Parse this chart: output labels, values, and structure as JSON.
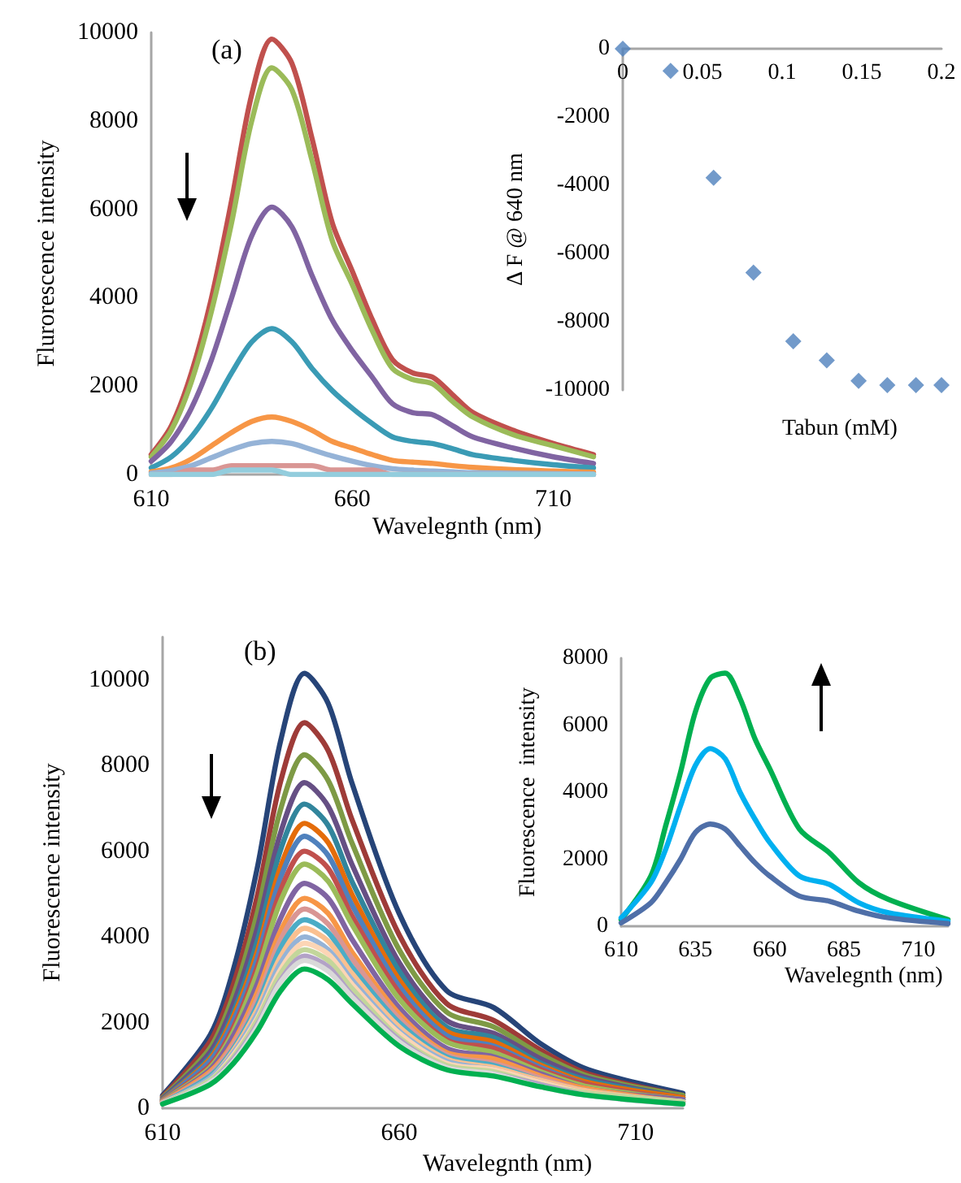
{
  "chart_data": [
    {
      "type": "line",
      "xlabel": "Wavelegnth (nm)",
      "ylabel": "Flurorescence intensity",
      "annotations": [
        "(a)"
      ],
      "marker": "none",
      "line_style": "solid",
      "xlim": [
        610,
        720
      ],
      "xticks": [
        610,
        660,
        710
      ],
      "ylim": [
        0,
        10000
      ],
      "yticks": [
        0,
        2000,
        4000,
        6000,
        8000,
        10000
      ],
      "x": [
        610,
        615,
        620,
        625,
        630,
        635,
        640,
        645,
        650,
        655,
        660,
        665,
        670,
        675,
        680,
        685,
        690,
        700,
        710,
        720
      ],
      "series": [
        {
          "color": "#c0504d",
          "values": [
            450,
            1100,
            2300,
            4000,
            6200,
            8600,
            9850,
            9300,
            7600,
            5700,
            4600,
            3500,
            2600,
            2300,
            2200,
            1800,
            1400,
            1000,
            700,
            450
          ]
        },
        {
          "color": "#9bbb59",
          "values": [
            400,
            1000,
            2100,
            3700,
            5700,
            8000,
            9200,
            8700,
            7100,
            5300,
            4300,
            3250,
            2400,
            2150,
            2050,
            1650,
            1300,
            900,
            650,
            400
          ]
        },
        {
          "color": "#8064a2",
          "values": [
            300,
            750,
            1500,
            2600,
            4000,
            5400,
            6050,
            5600,
            4500,
            3500,
            2800,
            2200,
            1600,
            1400,
            1350,
            1100,
            850,
            600,
            400,
            250
          ]
        },
        {
          "color": "#3a9bb5",
          "values": [
            150,
            400,
            850,
            1500,
            2300,
            3000,
            3300,
            3000,
            2400,
            1900,
            1500,
            1150,
            850,
            750,
            700,
            580,
            450,
            320,
            220,
            150
          ]
        },
        {
          "color": "#f79646",
          "values": [
            60,
            150,
            350,
            650,
            950,
            1200,
            1300,
            1200,
            1000,
            750,
            600,
            450,
            320,
            280,
            250,
            200,
            160,
            110,
            80,
            50
          ]
        },
        {
          "color": "#95b3d7",
          "values": [
            30,
            90,
            200,
            380,
            560,
            700,
            750,
            700,
            560,
            420,
            300,
            200,
            130,
            100,
            80,
            60,
            40,
            30,
            20,
            10
          ]
        },
        {
          "color": "#d99694",
          "values": [
            0,
            0,
            100,
            100,
            200,
            200,
            200,
            200,
            200,
            100,
            100,
            100,
            0,
            0,
            0,
            0,
            0,
            0,
            0,
            0
          ]
        },
        {
          "color": "#93cddd",
          "values": [
            0,
            0,
            0,
            0,
            100,
            100,
            100,
            0,
            0,
            0,
            0,
            0,
            0,
            0,
            0,
            0,
            0,
            0,
            0,
            0
          ]
        }
      ]
    },
    {
      "type": "scatter",
      "xlabel": "Tabun (mM)",
      "ylabel": "Δ F @ 640 nm",
      "marker": "diamond",
      "color": "#4f81bd",
      "xlim": [
        0,
        0.2
      ],
      "xticks": [
        0,
        0.05,
        0.1,
        0.15,
        0.2
      ],
      "ylim": [
        -10000,
        0
      ],
      "yticks": [
        -10000,
        -8000,
        -6000,
        -4000,
        -2000,
        0
      ],
      "x": [
        0,
        0.03,
        0.057,
        0.082,
        0.107,
        0.128,
        0.148,
        0.166,
        0.184,
        0.2
      ],
      "values": [
        0,
        -650,
        -3780,
        -6560,
        -8570,
        -9130,
        -9730,
        -9860,
        -9860,
        -9860
      ]
    },
    {
      "type": "line",
      "xlabel": "Wavelegnth (nm)",
      "ylabel": "Fluorescence intensity",
      "annotations": [
        "(b)"
      ],
      "marker": "none",
      "line_style": "solid",
      "xlim": [
        610,
        720
      ],
      "xticks": [
        610,
        660,
        710
      ],
      "ylim": [
        0,
        11000
      ],
      "yticks": [
        0,
        2000,
        4000,
        6000,
        8000,
        10000
      ],
      "x": [
        610,
        620,
        625,
        630,
        635,
        640,
        645,
        650,
        660,
        670,
        680,
        690,
        700,
        720
      ],
      "series": [
        {
          "color": "#264478",
          "values": [
            300,
            1700,
            3250,
            5600,
            8600,
            10150,
            9450,
            7600,
            4550,
            2750,
            2350,
            1500,
            900,
            350
          ]
        },
        {
          "color": "#9e3b38",
          "values": [
            270,
            1550,
            2900,
            4950,
            7650,
            9000,
            8350,
            6750,
            4050,
            2450,
            2050,
            1350,
            800,
            300
          ]
        },
        {
          "color": "#7e9a45",
          "values": [
            250,
            1400,
            2650,
            4550,
            7000,
            8250,
            7650,
            6200,
            3700,
            2250,
            1900,
            1250,
            750,
            300
          ]
        },
        {
          "color": "#664f84",
          "values": [
            230,
            1300,
            2450,
            4200,
            6450,
            7600,
            7050,
            5700,
            3400,
            2050,
            1750,
            1150,
            700,
            250
          ]
        },
        {
          "color": "#31859c",
          "values": [
            210,
            1200,
            2250,
            3900,
            6050,
            7100,
            6600,
            5300,
            3200,
            1900,
            1650,
            1050,
            650,
            250
          ]
        },
        {
          "color": "#e46c0a",
          "values": [
            200,
            1150,
            2150,
            3650,
            5650,
            6650,
            6200,
            5000,
            3000,
            1800,
            1550,
            1000,
            600,
            250
          ]
        },
        {
          "color": "#4f81bd",
          "values": [
            190,
            1100,
            2050,
            3500,
            5400,
            6350,
            5900,
            4750,
            2850,
            1700,
            1450,
            950,
            550,
            200
          ]
        },
        {
          "color": "#c0504d",
          "values": [
            180,
            1000,
            1900,
            3300,
            5100,
            6000,
            5600,
            4500,
            2700,
            1600,
            1400,
            900,
            550,
            200
          ]
        },
        {
          "color": "#9bbb59",
          "values": [
            170,
            950,
            1800,
            3150,
            4850,
            5700,
            5300,
            4300,
            2550,
            1550,
            1300,
            850,
            500,
            200
          ]
        },
        {
          "color": "#8064a2",
          "values": [
            160,
            900,
            1700,
            2900,
            4450,
            5250,
            4900,
            3950,
            2350,
            1400,
            1200,
            800,
            450,
            200
          ]
        },
        {
          "color": "#f79646",
          "values": [
            150,
            850,
            1550,
            2700,
            4150,
            4900,
            4550,
            3650,
            2200,
            1300,
            1150,
            750,
            450,
            150
          ]
        },
        {
          "color": "#d99694",
          "values": [
            140,
            800,
            1500,
            2550,
            3950,
            4650,
            4300,
            3500,
            2100,
            1250,
            1050,
            700,
            400,
            150
          ]
        },
        {
          "color": "#4bacc6",
          "values": [
            130,
            750,
            1400,
            2400,
            3750,
            4400,
            4100,
            3300,
            2000,
            1200,
            1000,
            650,
            400,
            150
          ]
        },
        {
          "color": "#fac090",
          "values": [
            130,
            700,
            1350,
            2300,
            3550,
            4200,
            3900,
            3150,
            1900,
            1150,
            950,
            650,
            400,
            150
          ]
        },
        {
          "color": "#95b3d7",
          "values": [
            120,
            700,
            1300,
            2200,
            3400,
            4000,
            3700,
            3000,
            1800,
            1100,
            900,
            600,
            350,
            150
          ]
        },
        {
          "color": "#fcd5b5",
          "values": [
            120,
            650,
            1250,
            2100,
            3250,
            3850,
            3600,
            2900,
            1750,
            1050,
            900,
            600,
            350,
            150
          ]
        },
        {
          "color": "#c3d69b",
          "values": [
            110,
            650,
            1200,
            2050,
            3150,
            3700,
            3450,
            2800,
            1650,
            1000,
            850,
            550,
            350,
            150
          ]
        },
        {
          "color": "#b3a2c7",
          "values": [
            110,
            600,
            1150,
            1950,
            3000,
            3550,
            3300,
            2650,
            1600,
            950,
            800,
            550,
            300,
            100
          ]
        },
        {
          "color": "#d9d9d9",
          "values": [
            100,
            600,
            1100,
            1900,
            2950,
            3450,
            3200,
            2600,
            1550,
            950,
            800,
            500,
            300,
            100
          ]
        },
        {
          "color": "#00b050",
          "values": [
            100,
            550,
            1050,
            1800,
            2750,
            3250,
            3000,
            2450,
            1450,
            900,
            750,
            500,
            300,
            100
          ]
        }
      ]
    },
    {
      "type": "line",
      "xlabel": "Wavelegnth (nm)",
      "ylabel": "Fluorescence  intensity",
      "marker": "none",
      "line_style": "solid",
      "xlim": [
        610,
        720
      ],
      "xticks": [
        610,
        635,
        660,
        685,
        710
      ],
      "ylim": [
        0,
        8000
      ],
      "yticks": [
        0,
        2000,
        4000,
        6000,
        8000
      ],
      "x": [
        610,
        620,
        625,
        630,
        635,
        640,
        645,
        650,
        655,
        660,
        670,
        680,
        690,
        700,
        720
      ],
      "series": [
        {
          "color": "#00b050",
          "values": [
            200,
            1500,
            3000,
            4600,
            6400,
            7400,
            7550,
            6800,
            5600,
            4700,
            2900,
            2200,
            1300,
            800,
            200
          ]
        },
        {
          "color": "#00b0f0",
          "values": [
            250,
            1300,
            2300,
            3600,
            4800,
            5300,
            5000,
            4000,
            3200,
            2500,
            1500,
            1250,
            700,
            400,
            150
          ]
        },
        {
          "color": "#4f6fa8",
          "values": [
            100,
            700,
            1300,
            2000,
            2800,
            3050,
            2900,
            2400,
            1900,
            1500,
            900,
            750,
            450,
            250,
            80
          ]
        }
      ]
    }
  ]
}
